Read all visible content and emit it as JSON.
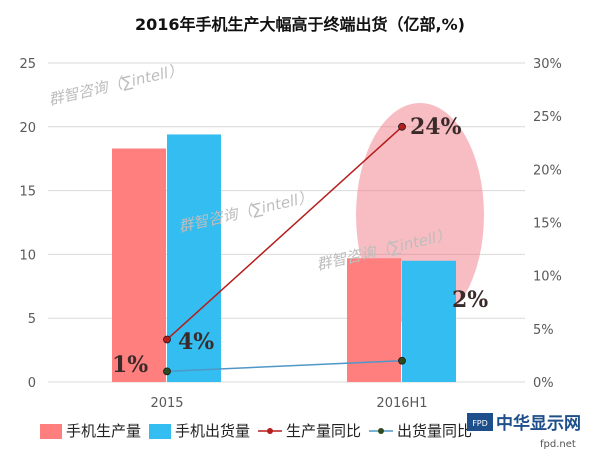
{
  "chart_data": {
    "type": "bar",
    "title": "2016年手机生产大幅高于终端出货（亿部,%)",
    "categories": [
      "2015",
      "2016H1"
    ],
    "left_axis": {
      "ylim": [
        0,
        25
      ],
      "ticks": [
        "0",
        "5",
        "10",
        "15",
        "20",
        "25"
      ]
    },
    "right_axis": {
      "ylim": [
        0,
        30
      ],
      "ticks": [
        "0%",
        "5%",
        "10%",
        "15%",
        "20%",
        "25%",
        "30%"
      ]
    },
    "grid": true,
    "legend_position": "bottom",
    "series": [
      {
        "name": "手机生产量",
        "kind": "bar",
        "axis": "left",
        "values": [
          18.3,
          9.7
        ],
        "color": "#ff7f7f"
      },
      {
        "name": "手机出货量",
        "kind": "bar",
        "axis": "left",
        "values": [
          19.4,
          9.5
        ],
        "color": "#33bdf0"
      },
      {
        "name": "生产量同比",
        "kind": "line",
        "axis": "right",
        "values": [
          4,
          24
        ],
        "labels": [
          "4%",
          "24%"
        ],
        "color": "#b51c1c"
      },
      {
        "name": "出货量同比",
        "kind": "line",
        "axis": "right",
        "values": [
          1,
          2
        ],
        "labels": [
          "1%",
          "2%"
        ],
        "color": "#4f97c9"
      }
    ],
    "annotations": {
      "watermark": "群智咨询（∑intell）"
    }
  },
  "site_logo": {
    "text": "中华显示网",
    "badge": "FPD",
    "url_text": "fpd.net"
  },
  "colors": {
    "highlight_ellipse": "#ef7b85"
  }
}
